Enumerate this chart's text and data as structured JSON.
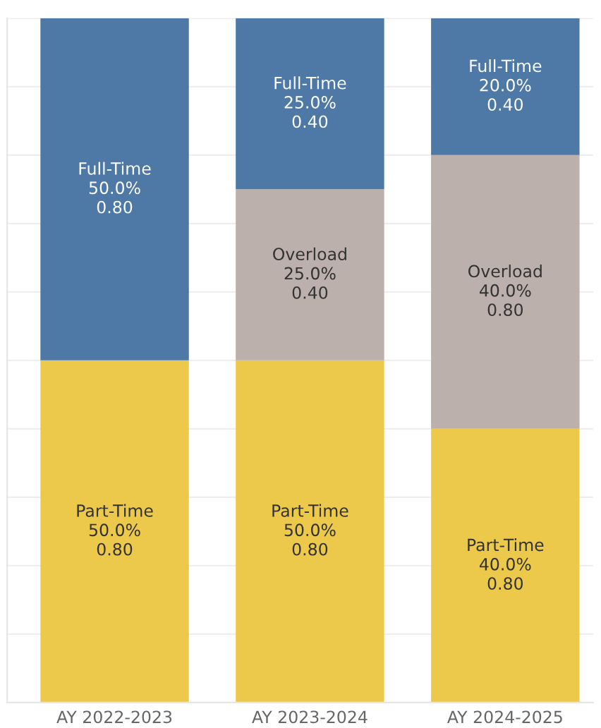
{
  "chart_data": {
    "type": "bar",
    "stacked": true,
    "categories": [
      "AY 2022-2023",
      "AY 2023-2024",
      "AY 2024-2025"
    ],
    "series": [
      {
        "name": "Part-Time",
        "color": "#ecc94b",
        "values": [
          50,
          50,
          40
        ],
        "value_labels": [
          "50.0%\n0.80",
          "50.0%\n0.80",
          "40.0%\n0.80"
        ]
      },
      {
        "name": "Overload",
        "color": "#bbb0ab",
        "values": [
          null,
          25,
          40
        ],
        "value_labels": [
          null,
          "25.0%\n0.40",
          "40.0%\n0.80"
        ]
      },
      {
        "name": "Full-Time",
        "color": "#4e79a7",
        "values": [
          50,
          25,
          20
        ],
        "value_labels": [
          "50.0%\n0.80",
          "25.0%\n0.40",
          "20.0%\n0.40"
        ]
      }
    ],
    "ylim": [
      0,
      100
    ],
    "yticks": [
      {
        "value": 0,
        "label": null
      },
      {
        "value": 10,
        "label": null
      },
      {
        "value": 20,
        "label": null
      },
      {
        "value": 30,
        "label": null
      },
      {
        "value": 40,
        "label": null
      },
      {
        "value": 50,
        "label": null
      },
      {
        "value": 60,
        "label": null
      },
      {
        "value": 70,
        "label": null
      },
      {
        "value": 80,
        "label": null
      },
      {
        "value": 90,
        "label": null
      },
      {
        "value": 100,
        "label": null
      }
    ],
    "tick_labels": "x",
    "grid": "y",
    "legend": false
  }
}
